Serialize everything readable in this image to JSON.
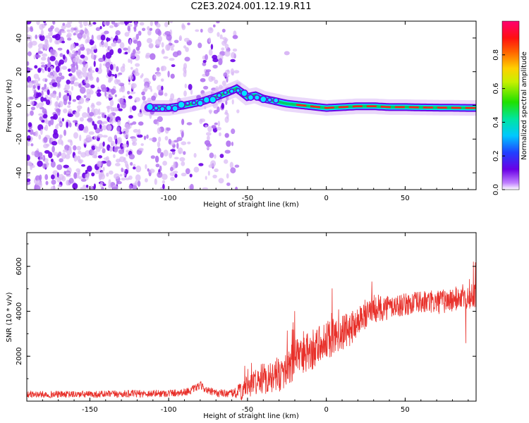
{
  "title": "C2E3.2024.001.12.19.R11",
  "colors": {
    "snr_line": "#e8302a",
    "scatter_light": "#d9b8f5",
    "scatter_mid": "#b070f0",
    "scatter_dark": "#6a00e6",
    "ridge_core": "#ff2020",
    "ridge_edge": "#00e5ff",
    "ridge_glow": "#00cc66",
    "axes": "#000000"
  },
  "chart_data": [
    {
      "type": "heatmap",
      "xlabel": "Height of straight line (km)",
      "ylabel": "Frequency (Hz)",
      "xlim": [
        -190,
        95
      ],
      "ylim": [
        -50,
        50
      ],
      "xticks": [
        -150,
        -100,
        -50,
        0,
        50
      ],
      "yticks": [
        -40,
        -20,
        0,
        20,
        40
      ],
      "colorbar": {
        "label": "Normalized spectral amplitude",
        "range": [
          0.0,
          1.0
        ],
        "ticks": [
          0.0,
          0.2,
          0.4,
          0.6,
          0.8
        ],
        "colormap": "rainbow (purple-blue-cyan-green-yellow-red-magenta)"
      },
      "ridge": {
        "x": [
          -113,
          -100,
          -90,
          -80,
          -70,
          -62,
          -57,
          -54,
          -50,
          -45,
          -40,
          -35,
          -30,
          -25,
          -20,
          -15,
          -10,
          -5,
          0,
          10,
          20,
          30,
          40,
          50,
          60,
          70,
          80,
          90,
          95
        ],
        "y": [
          -1.5,
          -1.5,
          0,
          2,
          5,
          8,
          10,
          8,
          5,
          6,
          4,
          3,
          2,
          1,
          0.5,
          0,
          -0.5,
          -1,
          -1.5,
          -1,
          -0.5,
          -0.5,
          -1,
          -1,
          -1.2,
          -1.3,
          -1.4,
          -1.5,
          -1.5
        ]
      },
      "noise_extent_x": [
        -190,
        -55
      ]
    },
    {
      "type": "line",
      "xlabel": "Height of straight line (km)",
      "ylabel": "SNR (10 * v/v)",
      "xlim": [
        -190,
        95
      ],
      "ylim": [
        0,
        7500
      ],
      "xticks": [
        -150,
        -100,
        -50,
        0,
        50
      ],
      "yticks": [
        2000,
        4000,
        6000
      ],
      "envelope": {
        "x": [
          -190,
          -150,
          -100,
          -90,
          -85,
          -80,
          -75,
          -70,
          -60,
          -55,
          -50,
          -45,
          -40,
          -35,
          -30,
          -25,
          -20,
          -15,
          -10,
          -5,
          0,
          5,
          10,
          15,
          20,
          25,
          30,
          40,
          50,
          60,
          70,
          80,
          85,
          90,
          95
        ],
        "y": [
          300,
          300,
          350,
          400,
          500,
          700,
          450,
          350,
          350,
          400,
          600,
          900,
          1000,
          1100,
          1200,
          1400,
          1800,
          2000,
          2200,
          2500,
          2700,
          2900,
          3000,
          3200,
          3600,
          3900,
          4100,
          4200,
          4300,
          4400,
          4400,
          4500,
          4600,
          4700,
          4700
        ]
      },
      "noise_amplitude": {
        "x": [
          -190,
          -60,
          -55,
          -40,
          -20,
          0,
          20,
          50,
          95
        ],
        "y": [
          150,
          180,
          400,
          700,
          900,
          900,
          700,
          500,
          600
        ]
      }
    }
  ]
}
